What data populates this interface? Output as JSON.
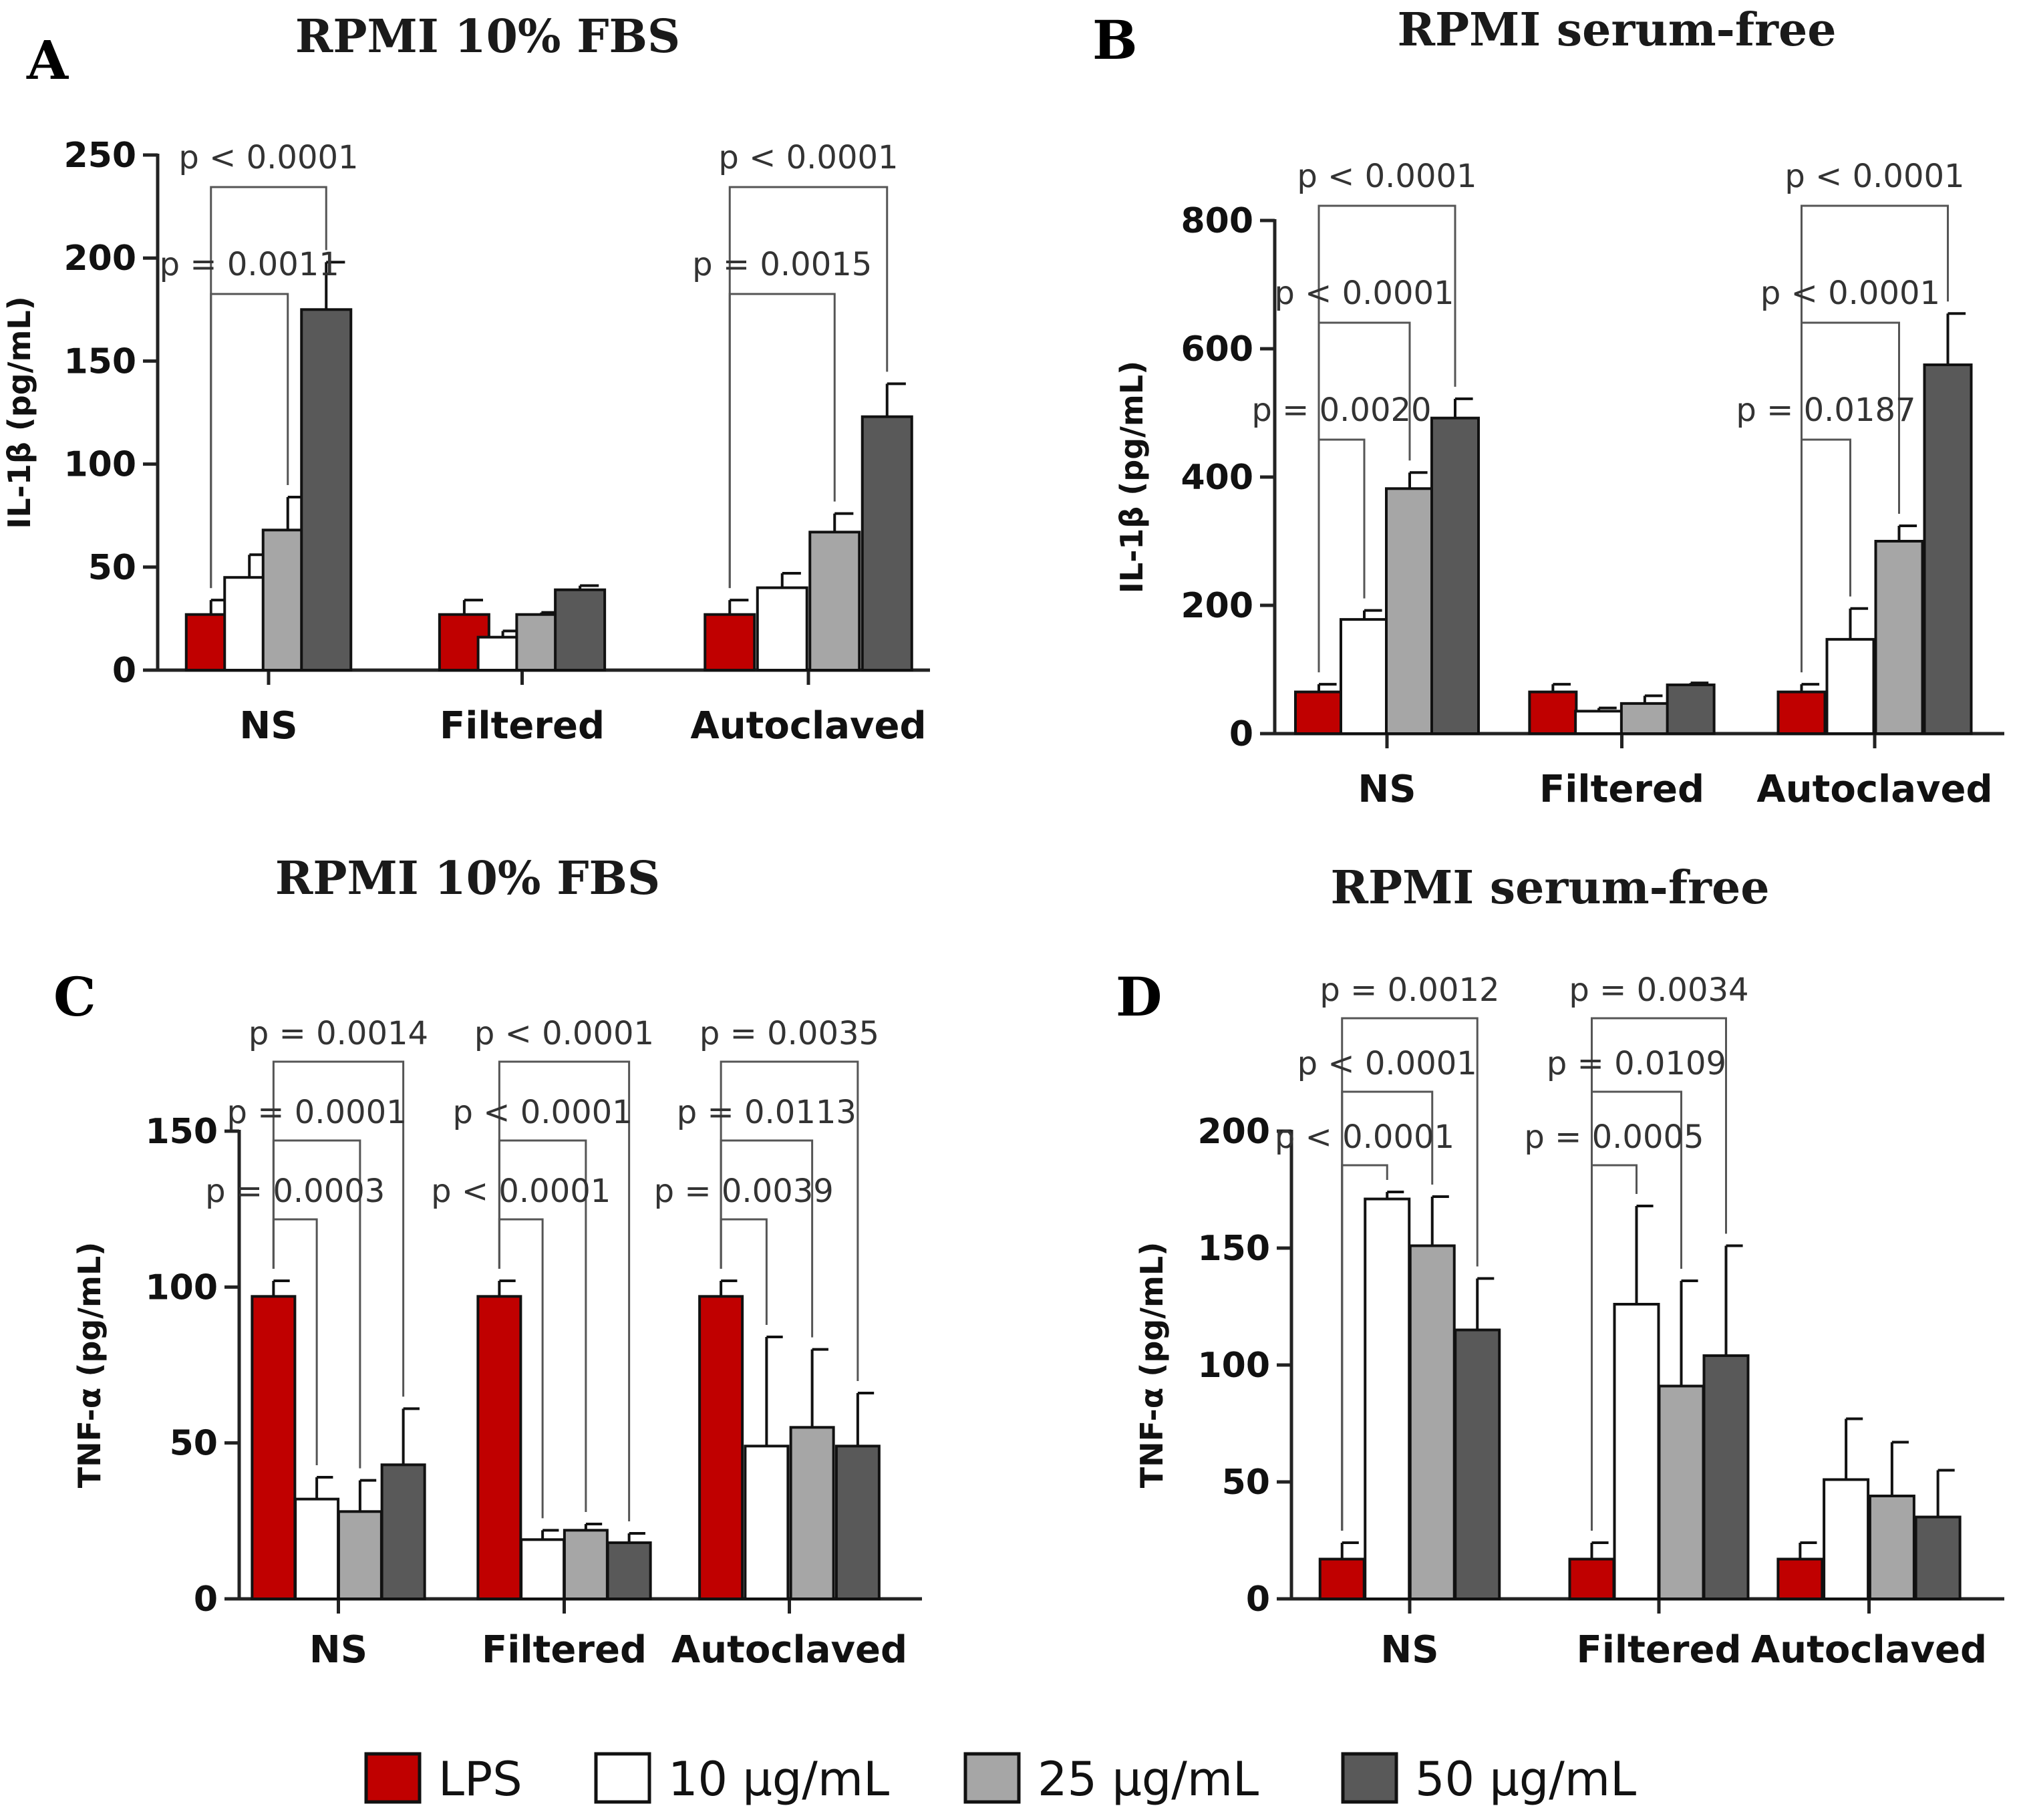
{
  "legend": [
    {
      "label": "LPS",
      "color": "#c00000"
    },
    {
      "label": "10 µg/mL",
      "color": "#ffffff"
    },
    {
      "label": "25 µg/mL",
      "color": "#a6a6a6"
    },
    {
      "label": "50 µg/mL",
      "color": "#595959"
    }
  ],
  "chart_data": [
    {
      "panel": "A",
      "type": "bar",
      "title": "RPMI 10%  FBS",
      "ylabel": "IL-1β (pg/mL)",
      "ylim": [
        0,
        250
      ],
      "yticks": [
        0,
        50,
        100,
        150,
        200,
        250
      ],
      "categories": [
        "NS",
        "Filtered",
        "Autoclaved"
      ],
      "series": [
        {
          "name": "LPS",
          "values": [
            27,
            27,
            27
          ],
          "errors": [
            7,
            7,
            7
          ]
        },
        {
          "name": "10 µg/mL",
          "values": [
            45,
            16,
            40
          ],
          "errors": [
            11,
            3,
            7
          ]
        },
        {
          "name": "25 µg/mL",
          "values": [
            68,
            27,
            67
          ],
          "errors": [
            16,
            1,
            9
          ]
        },
        {
          "name": "50 µg/mL",
          "values": [
            175,
            39,
            123
          ],
          "errors": [
            23,
            2,
            16
          ]
        }
      ],
      "annotations": [
        {
          "group": 0,
          "from": 0,
          "to": 3,
          "level": 2,
          "text": "p < 0.0001"
        },
        {
          "group": 0,
          "from": 0,
          "to": 2,
          "level": 1,
          "text": "p = 0.0011"
        },
        {
          "group": 2,
          "from": 0,
          "to": 3,
          "level": 2,
          "text": "p < 0.0001"
        },
        {
          "group": 2,
          "from": 0,
          "to": 2,
          "level": 1,
          "text": "p = 0.0015"
        }
      ]
    },
    {
      "panel": "B",
      "type": "bar",
      "title": "RPMI serum-free",
      "ylabel": "IL-1β (pg/mL)",
      "ylim": [
        0,
        800
      ],
      "yticks": [
        0,
        200,
        400,
        600,
        800
      ],
      "categories": [
        "NS",
        "Filtered",
        "Autoclaved"
      ],
      "series": [
        {
          "name": "LPS",
          "values": [
            65,
            65,
            65
          ],
          "errors": [
            12,
            12,
            12
          ]
        },
        {
          "name": "10 µg/mL",
          "values": [
            178,
            35,
            147
          ],
          "errors": [
            14,
            5,
            48
          ]
        },
        {
          "name": "25 µg/mL",
          "values": [
            382,
            47,
            300
          ],
          "errors": [
            25,
            12,
            24
          ]
        },
        {
          "name": "50 µg/mL",
          "values": [
            492,
            76,
            575
          ],
          "errors": [
            30,
            3,
            80
          ]
        }
      ],
      "annotations": [
        {
          "group": 0,
          "from": 0,
          "to": 3,
          "level": 3,
          "text": "p < 0.0001"
        },
        {
          "group": 0,
          "from": 0,
          "to": 2,
          "level": 2,
          "text": "p < 0.0001"
        },
        {
          "group": 0,
          "from": 0,
          "to": 1,
          "level": 1,
          "text": "p = 0.0020"
        },
        {
          "group": 2,
          "from": 0,
          "to": 3,
          "level": 3,
          "text": "p < 0.0001"
        },
        {
          "group": 2,
          "from": 0,
          "to": 2,
          "level": 2,
          "text": "p < 0.0001"
        },
        {
          "group": 2,
          "from": 0,
          "to": 1,
          "level": 1,
          "text": "p = 0.0187"
        }
      ]
    },
    {
      "panel": "C",
      "type": "bar",
      "title": "RPMI 10%  FBS",
      "ylabel": "TNF-α (pg/mL)",
      "ylim": [
        0,
        150
      ],
      "yticks": [
        0,
        50,
        100,
        150
      ],
      "categories": [
        "NS",
        "Filtered",
        "Autoclaved"
      ],
      "series": [
        {
          "name": "LPS",
          "values": [
            97,
            97,
            97
          ],
          "errors": [
            5,
            5,
            5
          ]
        },
        {
          "name": "10 µg/mL",
          "values": [
            32,
            19,
            49
          ],
          "errors": [
            7,
            3,
            35
          ]
        },
        {
          "name": "25 µg/mL",
          "values": [
            28,
            22,
            55
          ],
          "errors": [
            10,
            2,
            25
          ]
        },
        {
          "name": "50 µg/mL",
          "values": [
            43,
            18,
            49
          ],
          "errors": [
            18,
            3,
            17
          ]
        }
      ],
      "annotations": [
        {
          "group": 0,
          "from": 0,
          "to": 3,
          "level": 3,
          "text": "p = 0.0014"
        },
        {
          "group": 0,
          "from": 0,
          "to": 2,
          "level": 2,
          "text": "p = 0.0001"
        },
        {
          "group": 0,
          "from": 0,
          "to": 1,
          "level": 1,
          "text": "p = 0.0003"
        },
        {
          "group": 1,
          "from": 0,
          "to": 3,
          "level": 3,
          "text": "p < 0.0001"
        },
        {
          "group": 1,
          "from": 0,
          "to": 2,
          "level": 2,
          "text": "p < 0.0001"
        },
        {
          "group": 1,
          "from": 0,
          "to": 1,
          "level": 1,
          "text": "p < 0.0001"
        },
        {
          "group": 2,
          "from": 0,
          "to": 3,
          "level": 3,
          "text": "p = 0.0035"
        },
        {
          "group": 2,
          "from": 0,
          "to": 2,
          "level": 2,
          "text": "p = 0.0113"
        },
        {
          "group": 2,
          "from": 0,
          "to": 1,
          "level": 1,
          "text": "p = 0.0039"
        }
      ]
    },
    {
      "panel": "D",
      "type": "bar",
      "title": "RPMI serum-free",
      "ylabel": "TNF-α (pg/mL)",
      "ylim": [
        0,
        200
      ],
      "yticks": [
        0,
        50,
        100,
        150,
        200
      ],
      "categories": [
        "NS",
        "Filtered",
        "Autoclaved"
      ],
      "series": [
        {
          "name": "LPS",
          "values": [
            17,
            17,
            17
          ],
          "errors": [
            7,
            7,
            7
          ]
        },
        {
          "name": "10 µg/mL",
          "values": [
            171,
            126,
            51
          ],
          "errors": [
            3,
            42,
            26
          ]
        },
        {
          "name": "25 µg/mL",
          "values": [
            151,
            91,
            44
          ],
          "errors": [
            21,
            45,
            23
          ]
        },
        {
          "name": "50 µg/mL",
          "values": [
            115,
            104,
            35
          ],
          "errors": [
            22,
            47,
            20
          ]
        }
      ],
      "annotations": [
        {
          "group": 0,
          "from": 0,
          "to": 3,
          "level": 3,
          "text": "p = 0.0012"
        },
        {
          "group": 0,
          "from": 0,
          "to": 2,
          "level": 2,
          "text": "p < 0.0001"
        },
        {
          "group": 0,
          "from": 0,
          "to": 1,
          "level": 1,
          "text": "p < 0.0001"
        },
        {
          "group": 1,
          "from": 0,
          "to": 3,
          "level": 3,
          "text": "p = 0.0034"
        },
        {
          "group": 1,
          "from": 0,
          "to": 2,
          "level": 2,
          "text": "p = 0.0109"
        },
        {
          "group": 1,
          "from": 0,
          "to": 1,
          "level": 1,
          "text": "p = 0.0005"
        }
      ]
    }
  ]
}
